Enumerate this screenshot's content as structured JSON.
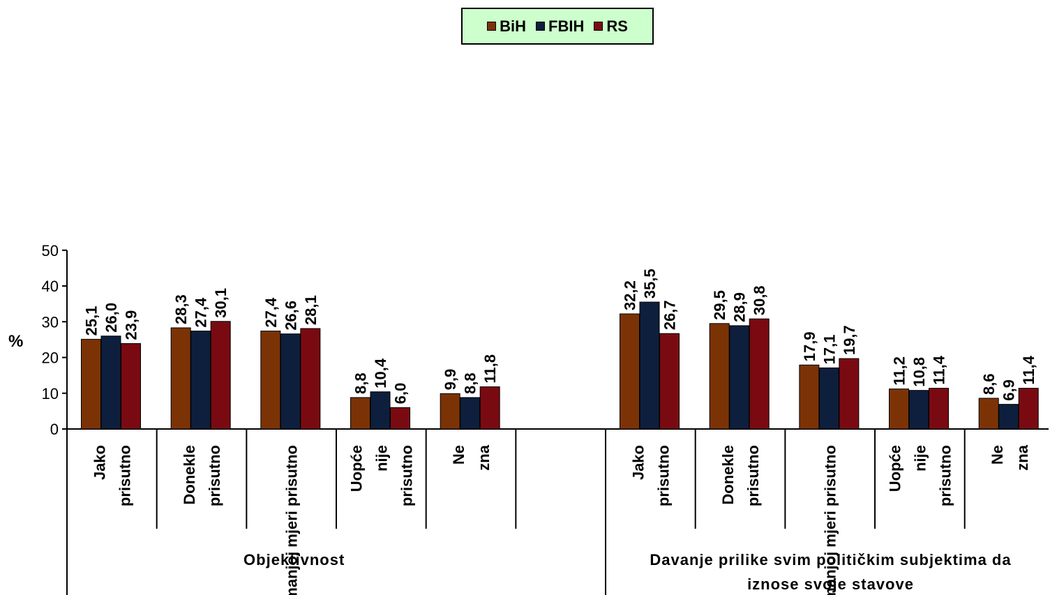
{
  "chart_data": {
    "type": "bar",
    "ylabel": "%",
    "ylim": [
      0,
      50
    ],
    "yticks": [
      0,
      10,
      20,
      30,
      40,
      50
    ],
    "grid": false,
    "legend_placement": "top-center",
    "categories": [
      "Jako prisutno",
      "Donekle prisutno",
      "U manjoj mjeri prisutno",
      "Uopće nije prisutno",
      "Ne zna"
    ],
    "series_names": [
      "BiH",
      "FBIH",
      "RS"
    ],
    "series_colors": [
      "#7b3306",
      "#0d1f3c",
      "#7a0a12"
    ],
    "groups": [
      {
        "label": "Objektivnost",
        "values": [
          [
            25.1,
            26.0,
            23.9
          ],
          [
            28.3,
            27.4,
            30.1
          ],
          [
            27.4,
            26.6,
            28.1
          ],
          [
            8.8,
            10.4,
            6.0
          ],
          [
            9.9,
            8.8,
            11.8
          ]
        ],
        "value_labels": [
          [
            "25,1",
            "26,0",
            "23,9"
          ],
          [
            "28,3",
            "27,4",
            "30,1"
          ],
          [
            "27,4",
            "26,6",
            "28,1"
          ],
          [
            "8,8",
            "10,4",
            "6,0"
          ],
          [
            "9,9",
            "8,8",
            "11,8"
          ]
        ]
      },
      {
        "label": "Davanje prilike svim političkim subjektima da iznose svoje stavove",
        "values": [
          [
            32.2,
            35.5,
            26.7
          ],
          [
            29.5,
            28.9,
            30.8
          ],
          [
            17.9,
            17.1,
            19.7
          ],
          [
            11.2,
            10.8,
            11.4
          ],
          [
            8.6,
            6.9,
            11.4
          ]
        ],
        "value_labels": [
          [
            "32,2",
            "35,5",
            "26,7"
          ],
          [
            "29,5",
            "28,9",
            "30,8"
          ],
          [
            "17,9",
            "17,1",
            "19,7"
          ],
          [
            "11,2",
            "10,8",
            "11,4"
          ],
          [
            "8,6",
            "6,9",
            "11,4"
          ]
        ]
      }
    ]
  }
}
